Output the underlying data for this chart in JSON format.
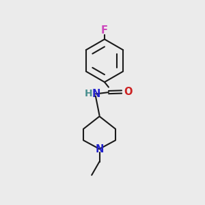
{
  "background_color": "#ebebeb",
  "bond_color": "#1a1a1a",
  "atom_colors": {
    "F": "#cc44bb",
    "N": "#2222cc",
    "O": "#cc2222",
    "H": "#4a9090"
  },
  "figsize": [
    3.0,
    3.0
  ],
  "dpi": 100,
  "lw": 1.5,
  "fs": 10.5
}
